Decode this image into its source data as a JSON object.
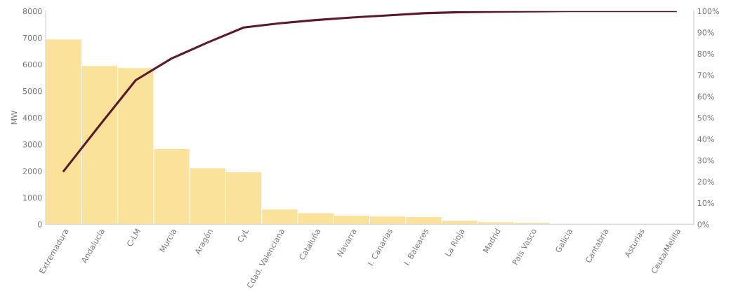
{
  "chart_data": {
    "type": "bar",
    "ylabel": "MW",
    "categories": [
      "Extremadura",
      "Andalucía",
      "C-LM",
      "Murcia",
      "Aragón",
      "CyL",
      "Cdad. Valenciana",
      "Cataluña",
      "Navarra",
      "I. Canarias",
      "I. Baleares",
      "La Rioja",
      "Madrid",
      "País Vasco",
      "Galicia",
      "Cantabria",
      "Asturias",
      "Ceuta/Melilla"
    ],
    "series": [
      {
        "color": "#fbe29a",
        "values": [
          6940,
          5940,
          5860,
          2820,
          2100,
          1950,
          550,
          420,
          320,
          290,
          270,
          130,
          80,
          50,
          0,
          0,
          0,
          0
        ]
      },
      {
        "type": "line",
        "axis": "y2",
        "color": "#5a1a2a",
        "values": [
          25.0,
          46.5,
          67.6,
          77.8,
          85.3,
          92.3,
          94.3,
          95.8,
          97.0,
          98.0,
          99.0,
          99.5,
          99.7,
          99.9,
          100,
          100,
          100,
          100
        ]
      }
    ],
    "ylim": [
      0,
      8000
    ],
    "yticks": [
      0,
      1000,
      2000,
      3000,
      4000,
      5000,
      6000,
      7000,
      8000
    ],
    "y2lim": [
      0,
      100
    ],
    "y2ticks": [
      {
        "value": 0,
        "label": "0%"
      },
      {
        "value": 10,
        "label": "10%"
      },
      {
        "value": 20,
        "label": "20%"
      },
      {
        "value": 30,
        "label": "30%"
      },
      {
        "value": 40,
        "label": "40%"
      },
      {
        "value": 50,
        "label": "50%"
      },
      {
        "value": 60,
        "label": "60%"
      },
      {
        "value": 70,
        "label": "70%"
      },
      {
        "value": 80,
        "label": "80%"
      },
      {
        "value": 90,
        "label": "90%"
      },
      {
        "value": 100,
        "label": "100%"
      }
    ],
    "grid": false,
    "marker": "none",
    "line_style": "solid"
  }
}
